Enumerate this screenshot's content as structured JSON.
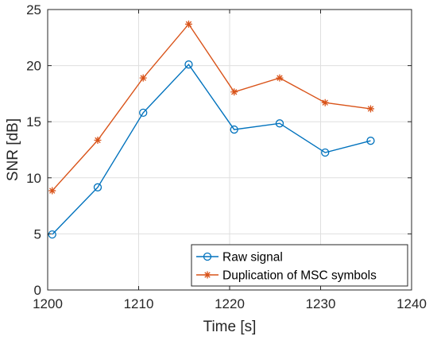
{
  "chart_data": {
    "type": "line",
    "title": "",
    "xlabel": "Time [s]",
    "ylabel": "SNR [dB]",
    "xlim": [
      1200,
      1240
    ],
    "ylim": [
      0,
      25
    ],
    "xticks": [
      1200,
      1210,
      1220,
      1230,
      1240
    ],
    "yticks": [
      0,
      5,
      10,
      15,
      20,
      25
    ],
    "grid": true,
    "legend_position": "bottom-right",
    "series": [
      {
        "name": "Raw signal",
        "color": "#0072BD",
        "marker": "circle",
        "x": [
          1200.5,
          1205.5,
          1210.5,
          1215.5,
          1220.5,
          1225.5,
          1230.5,
          1235.5
        ],
        "y": [
          4.95,
          9.15,
          15.8,
          20.1,
          14.3,
          14.85,
          12.25,
          13.3
        ]
      },
      {
        "name": "Duplication of MSC symbols",
        "color": "#D95319",
        "marker": "asterisk",
        "x": [
          1200.5,
          1205.5,
          1210.5,
          1215.5,
          1220.5,
          1225.5,
          1230.5,
          1235.5
        ],
        "y": [
          8.85,
          13.35,
          18.9,
          23.7,
          17.65,
          18.9,
          16.7,
          16.15
        ]
      }
    ]
  }
}
